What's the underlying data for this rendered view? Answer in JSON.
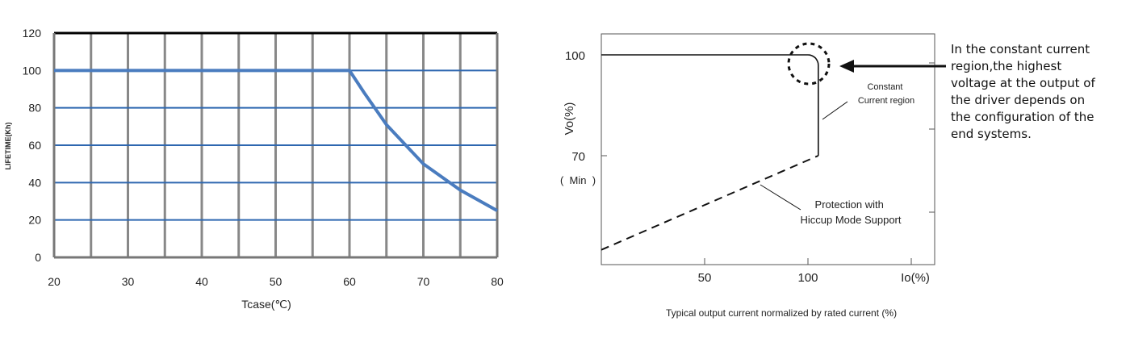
{
  "chart_data": [
    {
      "type": "line",
      "title": "",
      "xlabel": "Tcase(℃)",
      "ylabel": "LIFETIME(Kh)",
      "xlim": [
        20,
        80
      ],
      "ylim": [
        0,
        120
      ],
      "x_ticks": [
        "20",
        "30",
        "40",
        "50",
        "60",
        "70",
        "80"
      ],
      "y_ticks": [
        "0",
        "20",
        "40",
        "60",
        "80",
        "100",
        "120"
      ],
      "grid": true,
      "series": [
        {
          "x": [
            20,
            60,
            62,
            65,
            70,
            75,
            80
          ],
          "y": [
            100,
            100,
            88,
            71,
            50,
            36,
            25
          ]
        }
      ],
      "line_color": "#4a7cbf",
      "grid_h_color": "#2e67b0",
      "grid_v_color": "#888888"
    },
    {
      "type": "line",
      "title": "",
      "xlabel": "Typical output current normalized by rated current (%)",
      "ylabel": "Vo(%)",
      "x_axis_end_label": "Io(%)",
      "x_ticks": [
        "50",
        "100"
      ],
      "y_ticks": [
        "100",
        "70"
      ],
      "y_min_label": "(  Min  )",
      "series": [
        {
          "style": "solid",
          "x": [
            0,
            100,
            105,
            105
          ],
          "y": [
            100,
            100,
            95,
            70
          ]
        },
        {
          "style": "dashed",
          "x": [
            0,
            105
          ],
          "y": [
            42,
            70
          ]
        }
      ],
      "annotations": [
        {
          "text_lines": [
            "Constant",
            "Current region"
          ]
        },
        {
          "text_lines": [
            "Protection with",
            "Hiccup Mode Support"
          ]
        }
      ]
    }
  ],
  "note": {
    "lines": [
      "In the constant current",
      "region,the highest",
      "voltage at the output of",
      "the driver depends on",
      "the configuration of the",
      "end systems."
    ]
  }
}
